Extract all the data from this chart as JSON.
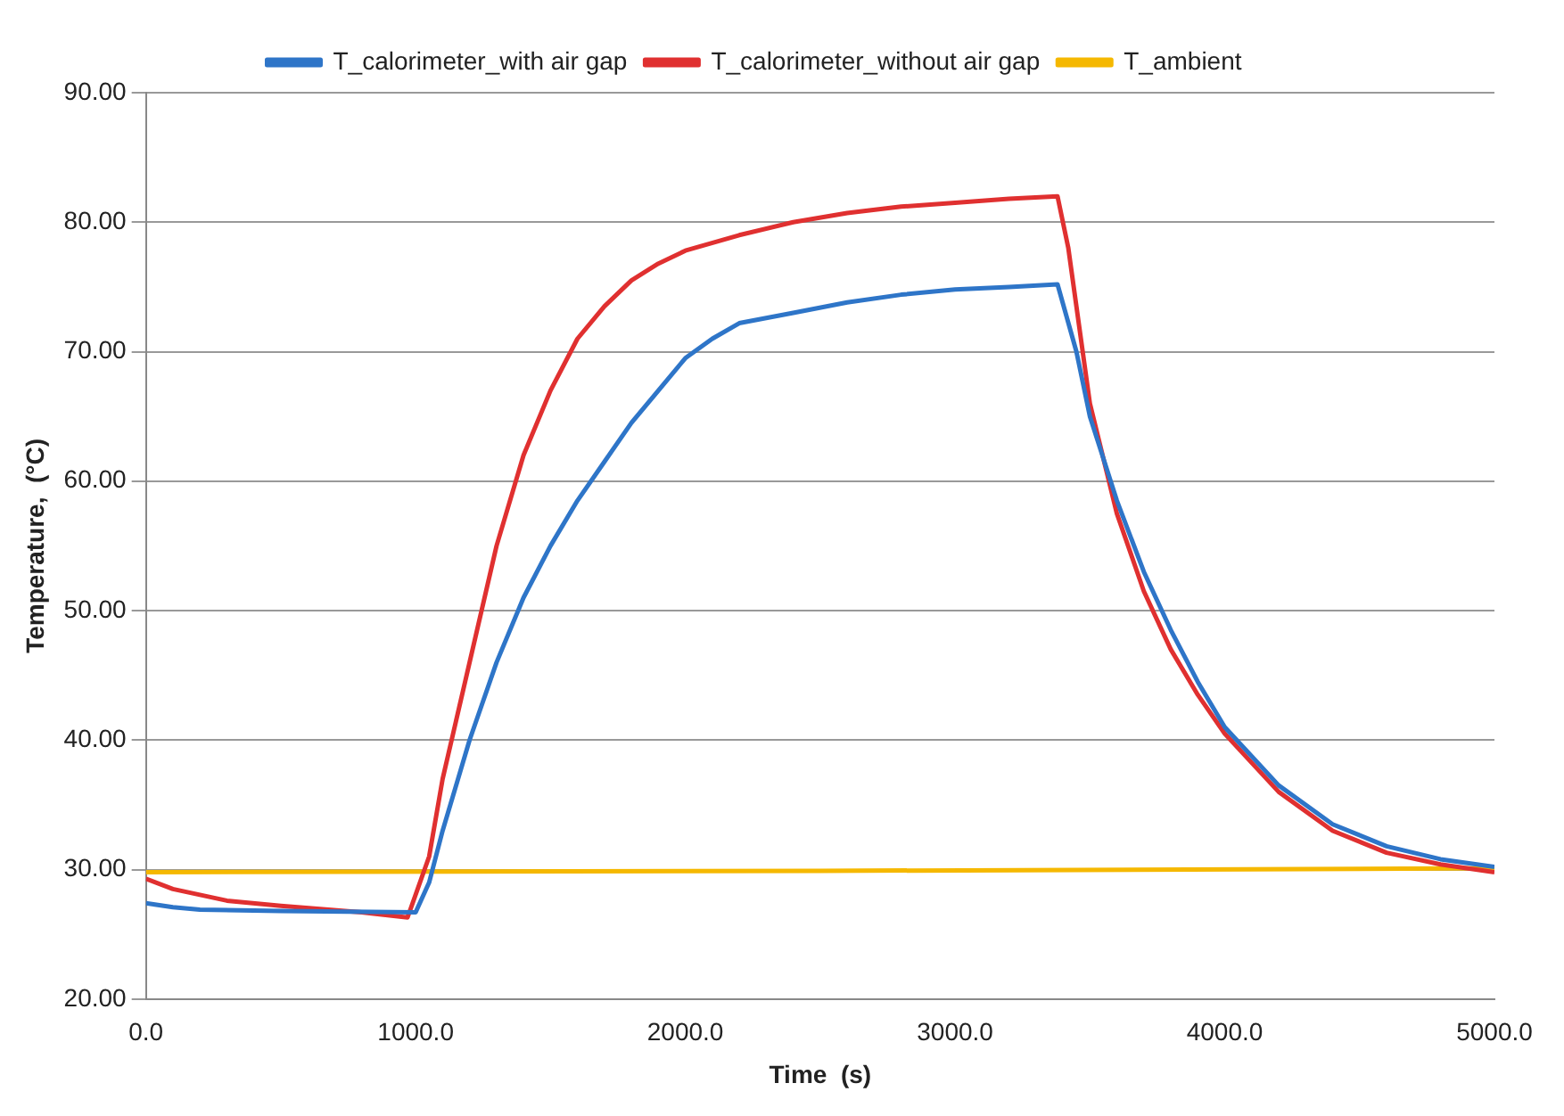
{
  "chart_data": {
    "type": "line",
    "xlabel": "Time  (s)",
    "ylabel": "Temperature,  (°C)",
    "xlim": [
      0,
      5000
    ],
    "ylim": [
      20,
      90
    ],
    "xticks": [
      {
        "value": 0,
        "label": "0.0"
      },
      {
        "value": 1000,
        "label": "1000.0"
      },
      {
        "value": 2000,
        "label": "2000.0"
      },
      {
        "value": 3000,
        "label": "3000.0"
      },
      {
        "value": 4000,
        "label": "4000.0"
      },
      {
        "value": 5000,
        "label": "5000.0"
      }
    ],
    "yticks": [
      {
        "value": 20,
        "label": "20.00"
      },
      {
        "value": 30,
        "label": "30.00"
      },
      {
        "value": 40,
        "label": "40.00"
      },
      {
        "value": 50,
        "label": "50.00"
      },
      {
        "value": 60,
        "label": "60.00"
      },
      {
        "value": 70,
        "label": "70.00"
      },
      {
        "value": 80,
        "label": "80.00"
      },
      {
        "value": 90,
        "label": "90.00"
      }
    ],
    "grid": "y",
    "legend": "top",
    "marker": "none",
    "line_style": "solid",
    "series": [
      {
        "name": "T_calorimeter_with air gap",
        "color": "#2e75c8",
        "x": [
          0,
          100,
          200,
          500,
          1000,
          1050,
          1100,
          1200,
          1300,
          1400,
          1500,
          1600,
          1700,
          1800,
          1900,
          2000,
          2100,
          2200,
          2400,
          2600,
          2800,
          3000,
          3200,
          3380,
          3450,
          3500,
          3600,
          3700,
          3800,
          3900,
          4000,
          4200,
          4400,
          4600,
          4800,
          5000
        ],
        "values": [
          27.4,
          27.1,
          26.9,
          26.8,
          26.7,
          29,
          33,
          40,
          46,
          51,
          55,
          58.5,
          61.5,
          64.5,
          67,
          69.5,
          71,
          72.2,
          73,
          73.8,
          74.4,
          74.8,
          75,
          75.2,
          70,
          65,
          58.5,
          53,
          48.5,
          44.5,
          41,
          36.5,
          33.5,
          31.8,
          30.8,
          30.2
        ]
      },
      {
        "name": "T_calorimeter_without air gap",
        "color": "#e03030",
        "x": [
          0,
          100,
          300,
          500,
          800,
          970,
          1050,
          1100,
          1200,
          1300,
          1400,
          1500,
          1600,
          1700,
          1800,
          1900,
          2000,
          2200,
          2400,
          2600,
          2800,
          3000,
          3200,
          3380,
          3420,
          3500,
          3600,
          3700,
          3800,
          3900,
          4000,
          4200,
          4400,
          4600,
          4800,
          5000
        ],
        "values": [
          29.3,
          28.5,
          27.6,
          27.2,
          26.7,
          26.3,
          31,
          37,
          46,
          55,
          62,
          67,
          71,
          73.5,
          75.5,
          76.8,
          77.8,
          79,
          80,
          80.7,
          81.2,
          81.5,
          81.8,
          82,
          78,
          66,
          57.5,
          51.5,
          47,
          43.5,
          40.5,
          36,
          33,
          31.3,
          30.4,
          29.8
        ]
      },
      {
        "name": "T_ambient",
        "color": "#f5b800",
        "x": [
          0,
          2500,
          5000
        ],
        "values": [
          29.8,
          29.9,
          30.1
        ]
      }
    ]
  }
}
